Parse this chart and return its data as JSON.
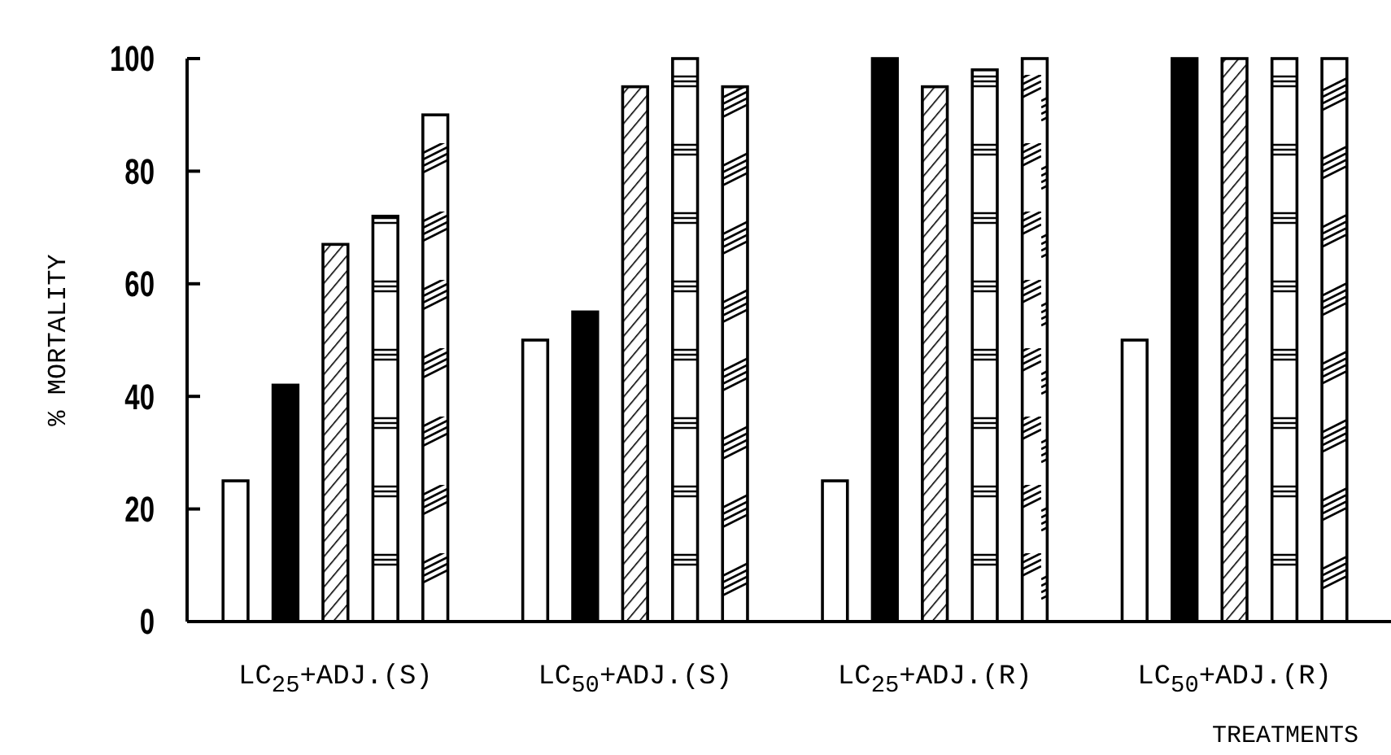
{
  "chart_data": {
    "type": "bar",
    "ylabel": "% MORTALITY",
    "xlabel": "TREATMENTS",
    "categories": [
      "LC$_{25}$+ADJ.(S)",
      "LC$_{50}$+ADJ.(S)",
      "LC$_{25}$+ADJ.(R)",
      "LC$_{50}$+ADJ.(R)"
    ],
    "series": [
      {
        "color": "#ffffff",
        "values": [
          25,
          50,
          25,
          50
        ]
      },
      {
        "color": "#000000",
        "values": [
          42,
          55,
          100,
          100
        ]
      },
      {
        "color": "#000000",
        "values": [
          67,
          95,
          95,
          100
        ]
      },
      {
        "color": "#000000",
        "values": [
          72,
          100,
          98,
          100
        ]
      },
      {
        "color": "#000000",
        "values": [
          90,
          95,
          100,
          100
        ]
      }
    ],
    "ylim": [
      0,
      100
    ],
    "yticks": [
      0,
      20,
      40,
      60,
      80,
      100
    ],
    "grid": false
  }
}
